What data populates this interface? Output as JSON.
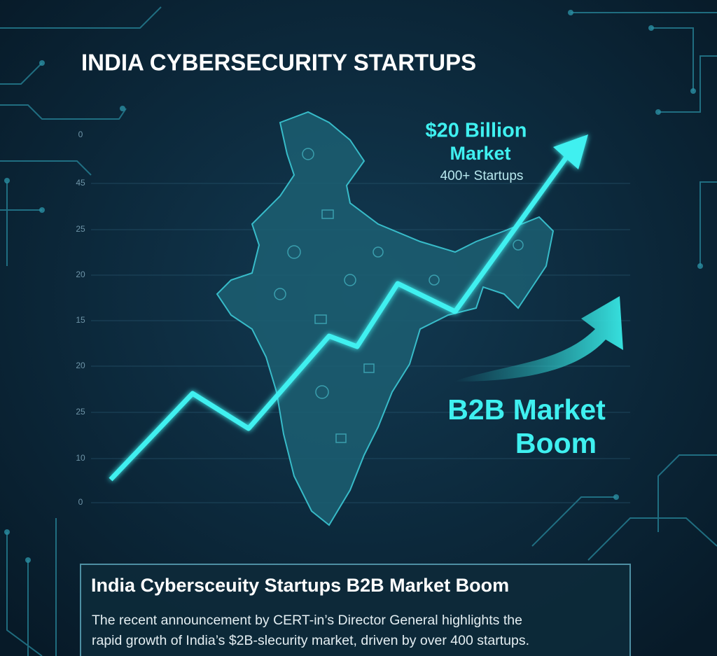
{
  "title": "INDIA CYBERSECURITY STARTUPS",
  "axis_labels": [
    "0",
    "45",
    "25",
    "20",
    "15",
    "20",
    "25",
    "10",
    "0"
  ],
  "callout": {
    "headline": "$20 Billion",
    "headline_line2": "Market",
    "subline": "400+ Startups"
  },
  "badge": {
    "line1": "B2B Market",
    "line2": "Boom"
  },
  "caption": {
    "heading": "India Cybersceuity Startups B2B Market Boom",
    "body": [
      "The recent announcement by CERT-in’s Director General highlights the",
      "rapid growth of India’s $2B-slecurity market, driven by over 400 startups."
    ]
  }
}
